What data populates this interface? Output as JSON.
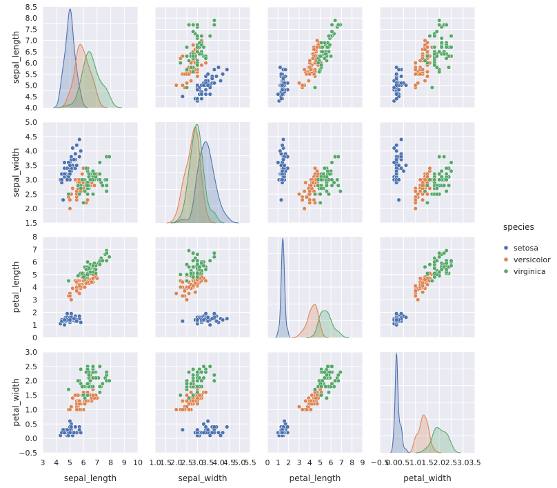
{
  "chart_data": {
    "type": "scatter",
    "variables": [
      "sepal_length",
      "sepal_width",
      "petal_length",
      "petal_width"
    ],
    "x_ticks": {
      "sepal_length": [
        3,
        4,
        5,
        6,
        7,
        8,
        9,
        10
      ],
      "sepal_width": [
        1.0,
        1.5,
        2.0,
        2.5,
        3.0,
        3.5,
        4.0,
        4.5,
        5.0,
        5.5
      ],
      "petal_length": [
        0,
        1,
        2,
        3,
        4,
        5,
        6,
        7,
        8,
        9
      ],
      "petal_width": [
        -0.5,
        0.0,
        0.5,
        1.0,
        1.5,
        2.0,
        2.5,
        3.0,
        3.5
      ]
    },
    "x_tick_labels": {
      "sepal_length": [
        "3",
        "4",
        "5",
        "6",
        "7",
        "8",
        "9",
        "10"
      ],
      "sepal_width": [
        "1.0",
        "1.5",
        "2.0",
        "2.5",
        "3.0",
        "3.5",
        "4.0",
        "4.5",
        "5.0",
        "5.5"
      ],
      "petal_length": [
        "0",
        "1",
        "2",
        "3",
        "4",
        "5",
        "6",
        "7",
        "8",
        "9"
      ],
      "petal_width": [
        "−0.5",
        "0.0",
        "0.5",
        "1.0",
        "1.5",
        "2.0",
        "2.5",
        "3.0",
        "3.5"
      ]
    },
    "y_ticks": {
      "sepal_length": [
        4.0,
        4.5,
        5.0,
        5.5,
        6.0,
        6.5,
        7.0,
        7.5,
        8.0,
        8.5
      ],
      "sepal_width": [
        1.5,
        2.0,
        2.5,
        3.0,
        3.5,
        4.0,
        4.5,
        5.0
      ],
      "petal_length": [
        0,
        1,
        2,
        3,
        4,
        5,
        6,
        7,
        8
      ],
      "petal_width": [
        -0.5,
        0.0,
        0.5,
        1.0,
        1.5,
        2.0,
        2.5,
        3.0
      ]
    },
    "y_tick_labels": {
      "sepal_length": [
        "4.0",
        "4.5",
        "5.0",
        "5.5",
        "6.0",
        "6.5",
        "7.0",
        "7.5",
        "8.0",
        "8.5"
      ],
      "sepal_width": [
        "1.5",
        "2.0",
        "2.5",
        "3.0",
        "3.5",
        "4.0",
        "4.5",
        "5.0"
      ],
      "petal_length": [
        "0",
        "1",
        "2",
        "3",
        "4",
        "5",
        "6",
        "7",
        "8"
      ],
      "petal_width": [
        "−0.5",
        "0.0",
        "0.5",
        "1.0",
        "1.5",
        "2.0",
        "2.5",
        "3.0"
      ]
    },
    "x_ranges": {
      "sepal_length": [
        3.0,
        10.0
      ],
      "sepal_width": [
        1.0,
        5.5
      ],
      "petal_length": [
        0.0,
        9.0
      ],
      "petal_width": [
        -0.5,
        3.5
      ]
    },
    "y_ranges": {
      "sepal_length": [
        4.0,
        8.5
      ],
      "sepal_width": [
        1.5,
        5.0
      ],
      "petal_length": [
        0.0,
        8.0
      ],
      "petal_width": [
        -0.5,
        3.0
      ]
    },
    "diagonal": "kde",
    "grid": true,
    "legend": {
      "title": "species",
      "placement": "right",
      "entries": [
        {
          "name": "setosa",
          "color": "#4c72b0"
        },
        {
          "name": "versicolor",
          "color": "#dd8452"
        },
        {
          "name": "virginica",
          "color": "#55a868"
        }
      ]
    },
    "series": [
      {
        "name": "setosa",
        "color": "#4c72b0",
        "points": [
          [
            5.1,
            3.5,
            1.4,
            0.2
          ],
          [
            4.9,
            3.0,
            1.4,
            0.2
          ],
          [
            4.7,
            3.2,
            1.3,
            0.2
          ],
          [
            4.6,
            3.1,
            1.5,
            0.2
          ],
          [
            5.0,
            3.6,
            1.4,
            0.2
          ],
          [
            5.4,
            3.9,
            1.7,
            0.4
          ],
          [
            4.6,
            3.4,
            1.4,
            0.3
          ],
          [
            5.0,
            3.4,
            1.5,
            0.2
          ],
          [
            4.4,
            2.9,
            1.4,
            0.2
          ],
          [
            4.9,
            3.1,
            1.5,
            0.1
          ],
          [
            5.4,
            3.7,
            1.5,
            0.2
          ],
          [
            4.8,
            3.4,
            1.6,
            0.2
          ],
          [
            4.8,
            3.0,
            1.4,
            0.1
          ],
          [
            4.3,
            3.0,
            1.1,
            0.1
          ],
          [
            5.8,
            4.0,
            1.2,
            0.2
          ],
          [
            5.7,
            4.4,
            1.5,
            0.4
          ],
          [
            5.4,
            3.9,
            1.3,
            0.4
          ],
          [
            5.1,
            3.5,
            1.4,
            0.3
          ],
          [
            5.7,
            3.8,
            1.7,
            0.3
          ],
          [
            5.1,
            3.8,
            1.5,
            0.3
          ],
          [
            5.4,
            3.4,
            1.7,
            0.2
          ],
          [
            5.1,
            3.7,
            1.5,
            0.4
          ],
          [
            4.6,
            3.6,
            1.0,
            0.2
          ],
          [
            5.1,
            3.3,
            1.7,
            0.5
          ],
          [
            4.8,
            3.4,
            1.9,
            0.2
          ],
          [
            5.0,
            3.0,
            1.6,
            0.2
          ],
          [
            5.0,
            3.4,
            1.6,
            0.4
          ],
          [
            5.2,
            3.5,
            1.5,
            0.2
          ],
          [
            5.2,
            3.4,
            1.4,
            0.2
          ],
          [
            4.7,
            3.2,
            1.6,
            0.2
          ],
          [
            4.8,
            3.1,
            1.6,
            0.2
          ],
          [
            5.4,
            3.4,
            1.5,
            0.4
          ],
          [
            5.2,
            4.1,
            1.5,
            0.1
          ],
          [
            5.5,
            4.2,
            1.4,
            0.2
          ],
          [
            4.9,
            3.1,
            1.5,
            0.2
          ],
          [
            5.0,
            3.2,
            1.2,
            0.2
          ],
          [
            5.5,
            3.5,
            1.3,
            0.2
          ],
          [
            4.9,
            3.6,
            1.4,
            0.1
          ],
          [
            4.4,
            3.0,
            1.3,
            0.2
          ],
          [
            5.1,
            3.4,
            1.5,
            0.2
          ],
          [
            5.0,
            3.5,
            1.3,
            0.3
          ],
          [
            4.5,
            2.3,
            1.3,
            0.3
          ],
          [
            4.4,
            3.2,
            1.3,
            0.2
          ],
          [
            5.0,
            3.5,
            1.6,
            0.6
          ],
          [
            5.1,
            3.8,
            1.9,
            0.4
          ],
          [
            4.8,
            3.0,
            1.4,
            0.3
          ],
          [
            5.1,
            3.8,
            1.6,
            0.2
          ],
          [
            4.6,
            3.2,
            1.4,
            0.2
          ],
          [
            5.3,
            3.7,
            1.5,
            0.2
          ],
          [
            5.0,
            3.3,
            1.4,
            0.2
          ]
        ]
      },
      {
        "name": "versicolor",
        "color": "#dd8452",
        "points": [
          [
            7.0,
            3.2,
            4.7,
            1.4
          ],
          [
            6.4,
            3.2,
            4.5,
            1.5
          ],
          [
            6.9,
            3.1,
            4.9,
            1.5
          ],
          [
            5.5,
            2.3,
            4.0,
            1.3
          ],
          [
            6.5,
            2.8,
            4.6,
            1.5
          ],
          [
            5.7,
            2.8,
            4.5,
            1.3
          ],
          [
            6.3,
            3.3,
            4.7,
            1.6
          ],
          [
            4.9,
            2.4,
            3.3,
            1.0
          ],
          [
            6.6,
            2.9,
            4.6,
            1.3
          ],
          [
            5.2,
            2.7,
            3.9,
            1.4
          ],
          [
            5.0,
            2.0,
            3.5,
            1.0
          ],
          [
            5.9,
            3.0,
            4.2,
            1.5
          ],
          [
            6.0,
            2.2,
            4.0,
            1.0
          ],
          [
            6.1,
            2.9,
            4.7,
            1.4
          ],
          [
            5.6,
            2.9,
            3.6,
            1.3
          ],
          [
            6.7,
            3.1,
            4.4,
            1.4
          ],
          [
            5.6,
            3.0,
            4.5,
            1.5
          ],
          [
            5.8,
            2.7,
            4.1,
            1.0
          ],
          [
            6.2,
            2.2,
            4.5,
            1.5
          ],
          [
            5.6,
            2.5,
            3.9,
            1.1
          ],
          [
            5.9,
            3.2,
            4.8,
            1.8
          ],
          [
            6.1,
            2.8,
            4.0,
            1.3
          ],
          [
            6.3,
            2.5,
            4.9,
            1.5
          ],
          [
            6.1,
            2.8,
            4.7,
            1.2
          ],
          [
            6.4,
            2.9,
            4.3,
            1.3
          ],
          [
            6.6,
            3.0,
            4.4,
            1.4
          ],
          [
            6.8,
            2.8,
            4.8,
            1.4
          ],
          [
            6.7,
            3.0,
            5.0,
            1.7
          ],
          [
            6.0,
            2.9,
            4.5,
            1.5
          ],
          [
            5.7,
            2.6,
            3.5,
            1.0
          ],
          [
            5.5,
            2.4,
            3.8,
            1.1
          ],
          [
            5.5,
            2.4,
            3.7,
            1.0
          ],
          [
            5.8,
            2.7,
            3.9,
            1.2
          ],
          [
            6.0,
            2.7,
            5.1,
            1.6
          ],
          [
            5.4,
            3.0,
            4.5,
            1.5
          ],
          [
            6.0,
            3.4,
            4.5,
            1.6
          ],
          [
            6.7,
            3.1,
            4.7,
            1.5
          ],
          [
            6.3,
            2.3,
            4.4,
            1.3
          ],
          [
            5.6,
            3.0,
            4.1,
            1.3
          ],
          [
            5.5,
            2.5,
            4.0,
            1.3
          ],
          [
            5.5,
            2.6,
            4.4,
            1.2
          ],
          [
            6.1,
            3.0,
            4.6,
            1.4
          ],
          [
            5.8,
            2.6,
            4.0,
            1.2
          ],
          [
            5.0,
            2.3,
            3.3,
            1.0
          ],
          [
            5.6,
            2.7,
            4.2,
            1.3
          ],
          [
            5.7,
            3.0,
            4.2,
            1.2
          ],
          [
            5.7,
            2.9,
            4.2,
            1.3
          ],
          [
            6.2,
            2.9,
            4.3,
            1.3
          ],
          [
            5.1,
            2.5,
            3.0,
            1.1
          ],
          [
            5.7,
            2.8,
            4.1,
            1.3
          ]
        ]
      },
      {
        "name": "virginica",
        "color": "#55a868",
        "points": [
          [
            6.3,
            3.3,
            6.0,
            2.5
          ],
          [
            5.8,
            2.7,
            5.1,
            1.9
          ],
          [
            7.1,
            3.0,
            5.9,
            2.1
          ],
          [
            6.3,
            2.9,
            5.6,
            1.8
          ],
          [
            6.5,
            3.0,
            5.8,
            2.2
          ],
          [
            7.6,
            3.0,
            6.6,
            2.1
          ],
          [
            4.9,
            2.5,
            4.5,
            1.7
          ],
          [
            7.3,
            2.9,
            6.3,
            1.8
          ],
          [
            6.7,
            2.5,
            5.8,
            1.8
          ],
          [
            7.2,
            3.6,
            6.1,
            2.5
          ],
          [
            6.5,
            3.2,
            5.1,
            2.0
          ],
          [
            6.4,
            2.7,
            5.3,
            1.9
          ],
          [
            6.8,
            3.0,
            5.5,
            2.1
          ],
          [
            5.7,
            2.5,
            5.0,
            2.0
          ],
          [
            5.8,
            2.8,
            5.1,
            2.4
          ],
          [
            6.4,
            3.2,
            5.3,
            2.3
          ],
          [
            6.5,
            3.0,
            5.5,
            1.8
          ],
          [
            7.7,
            3.8,
            6.7,
            2.2
          ],
          [
            7.7,
            2.6,
            6.9,
            2.3
          ],
          [
            6.0,
            2.2,
            5.0,
            1.5
          ],
          [
            6.9,
            3.2,
            5.7,
            2.3
          ],
          [
            5.6,
            2.8,
            4.9,
            2.0
          ],
          [
            7.7,
            2.8,
            6.7,
            2.0
          ],
          [
            6.3,
            2.7,
            4.9,
            1.8
          ],
          [
            6.7,
            3.3,
            5.7,
            2.1
          ],
          [
            7.2,
            3.2,
            6.0,
            1.8
          ],
          [
            6.2,
            2.8,
            4.8,
            1.8
          ],
          [
            6.1,
            3.0,
            4.9,
            1.8
          ],
          [
            6.4,
            2.8,
            5.6,
            2.1
          ],
          [
            7.2,
            3.0,
            5.8,
            1.6
          ],
          [
            7.4,
            2.8,
            6.1,
            1.9
          ],
          [
            7.9,
            3.8,
            6.4,
            2.0
          ],
          [
            6.4,
            2.8,
            5.6,
            2.2
          ],
          [
            6.3,
            2.8,
            5.1,
            1.5
          ],
          [
            6.1,
            2.6,
            5.6,
            1.4
          ],
          [
            7.7,
            3.0,
            6.1,
            2.3
          ],
          [
            6.3,
            3.4,
            5.6,
            2.4
          ],
          [
            6.4,
            3.1,
            5.5,
            1.8
          ],
          [
            6.0,
            3.0,
            4.8,
            1.8
          ],
          [
            6.9,
            3.1,
            5.4,
            2.1
          ],
          [
            6.7,
            3.1,
            5.6,
            2.4
          ],
          [
            6.9,
            3.1,
            5.1,
            2.3
          ],
          [
            5.8,
            2.7,
            5.1,
            1.9
          ],
          [
            6.8,
            3.2,
            5.9,
            2.3
          ],
          [
            6.7,
            3.3,
            5.7,
            2.5
          ],
          [
            6.7,
            3.0,
            5.2,
            2.3
          ],
          [
            6.3,
            2.5,
            5.0,
            1.9
          ],
          [
            6.5,
            3.0,
            5.2,
            2.0
          ],
          [
            6.2,
            3.4,
            5.4,
            2.3
          ],
          [
            5.9,
            3.0,
            5.1,
            1.8
          ]
        ]
      }
    ]
  }
}
